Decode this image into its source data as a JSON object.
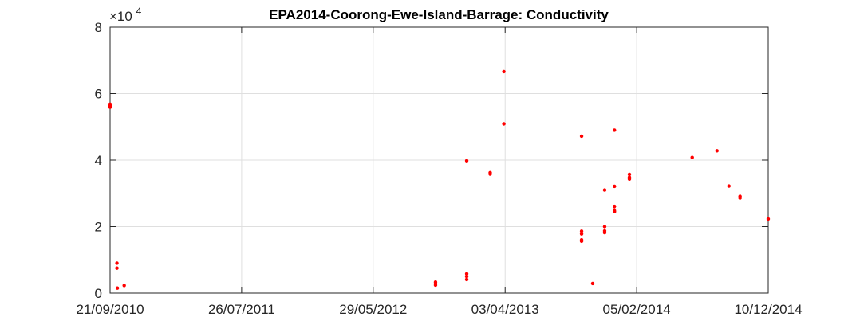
{
  "chart_data": {
    "type": "scatter",
    "title": "EPA2014-Coorong-Ewe-Island-Barrage: Conductivity",
    "xlabel": "",
    "ylabel": "",
    "x_axis_type": "date",
    "xlim": [
      "2010-09-21",
      "2014-12-10"
    ],
    "ylim": [
      0,
      80000
    ],
    "y_exponent_label": "×10",
    "y_exponent_power": "4",
    "x_tick_labels": [
      "21/09/2010",
      "26/07/2011",
      "29/05/2012",
      "03/04/2013",
      "05/02/2014",
      "10/12/2014"
    ],
    "x_tick_dates": [
      "2010-09-21",
      "2011-07-26",
      "2012-05-29",
      "2013-04-03",
      "2014-02-05",
      "2014-12-10"
    ],
    "y_tick_labels": [
      "0",
      "2",
      "4",
      "6",
      "8"
    ],
    "y_tick_values": [
      0,
      20000,
      40000,
      60000,
      80000
    ],
    "grid": true,
    "legend": "none",
    "marker_color": "#ff0000",
    "series": [
      {
        "x": [
          "2010-09-21",
          "2010-09-21",
          "2010-09-21",
          "2010-10-07",
          "2010-10-07",
          "2010-10-08",
          "2010-10-24",
          "2012-10-22",
          "2012-10-22",
          "2012-10-22",
          "2013-01-03",
          "2013-01-03",
          "2013-01-03",
          "2013-01-03",
          "2013-02-27",
          "2013-02-27",
          "2013-03-31",
          "2013-03-31",
          "2013-09-29",
          "2013-09-29",
          "2013-09-29",
          "2013-09-29",
          "2013-09-29",
          "2013-10-25",
          "2013-11-22",
          "2013-11-22",
          "2013-11-22",
          "2013-11-22",
          "2013-12-15",
          "2013-12-15",
          "2013-12-15",
          "2013-12-15",
          "2013-12-15",
          "2014-01-19",
          "2014-01-19",
          "2014-01-19",
          "2014-06-15",
          "2014-08-12",
          "2014-09-09",
          "2014-10-05",
          "2014-10-05",
          "2014-12-10"
        ],
        "y": [
          56800,
          56300,
          55900,
          9000,
          7500,
          1500,
          2300,
          3300,
          2800,
          2400,
          39800,
          5800,
          5000,
          4100,
          36200,
          35800,
          66600,
          50900,
          47200,
          18600,
          17800,
          16000,
          15600,
          2900,
          31000,
          20000,
          18700,
          18200,
          49000,
          32100,
          26100,
          25000,
          24500,
          35700,
          34800,
          34300,
          40800,
          42800,
          32200,
          29100,
          28600,
          22300
        ]
      }
    ]
  }
}
